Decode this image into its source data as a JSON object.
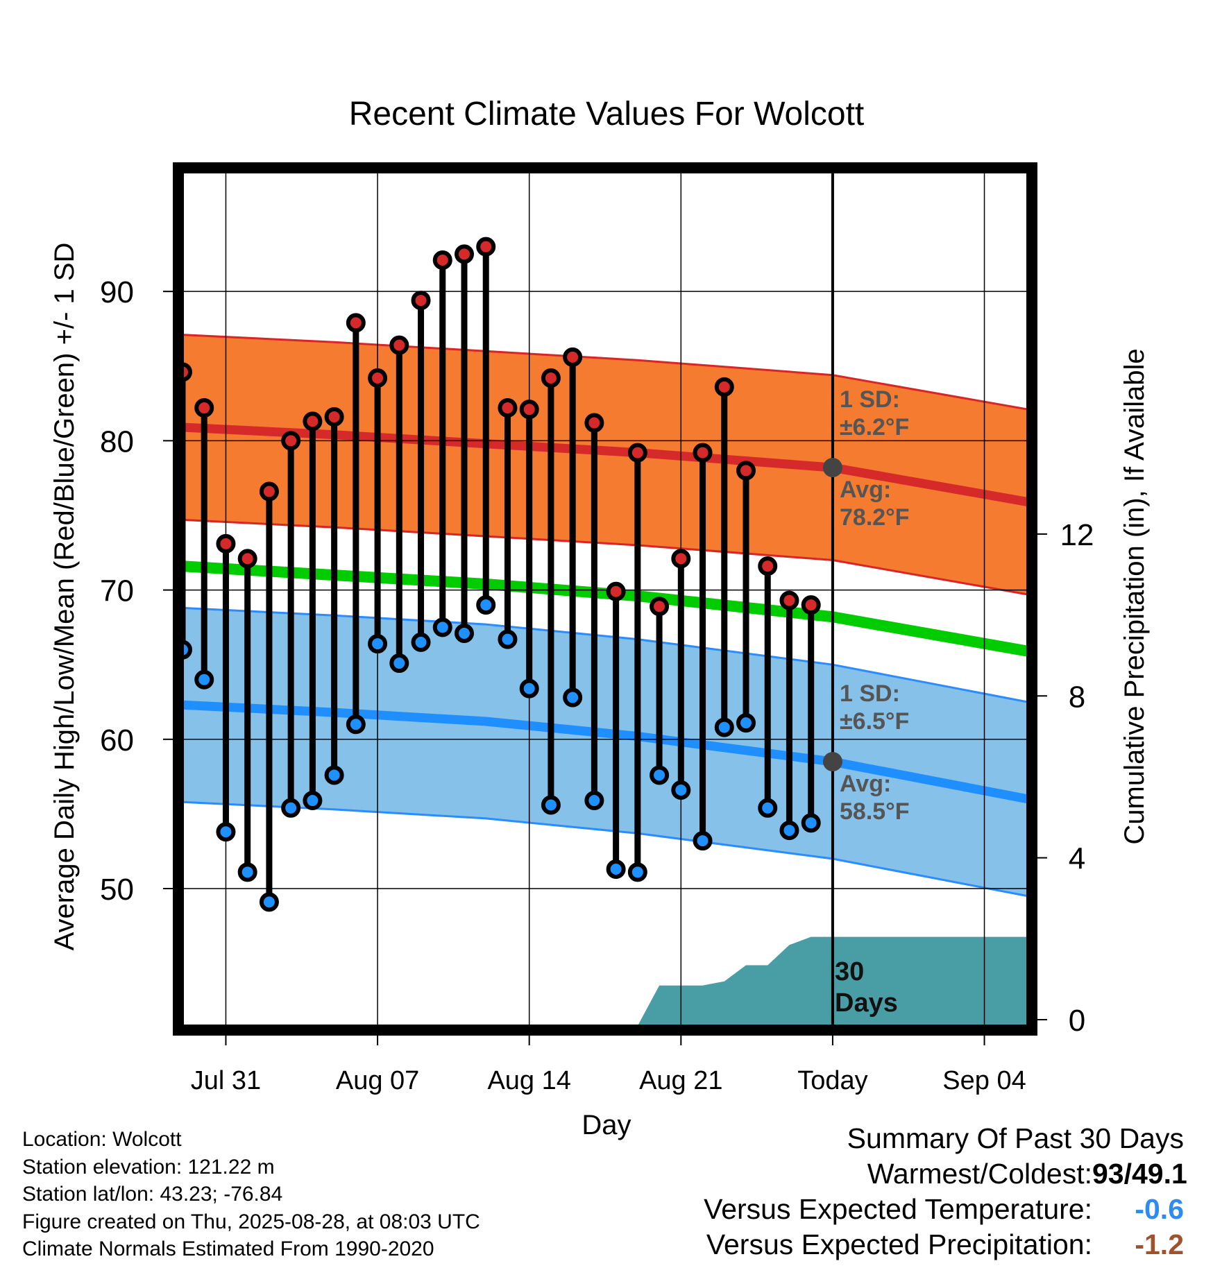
{
  "chart_data": {
    "type": "line",
    "title": "Recent Climate Values For Wolcott",
    "xlabel": "Day",
    "ylabel": "Average Daily High/Low/Mean (Red/Blue/Green) +/- 1 SD",
    "y2label": "Cumulative Precipitation (in), If Available",
    "x_start": "2025-07-29",
    "x_end": "2025-09-06",
    "today": "2025-08-28",
    "ylim": [
      40.8,
      98
    ],
    "y_ticks": [
      50,
      60,
      70,
      80,
      90
    ],
    "y2lim": [
      0,
      21.1
    ],
    "y2_ticks": [
      0,
      4,
      8,
      12
    ],
    "x_ticks": [
      {
        "date": "2025-07-31",
        "label": "Jul 31"
      },
      {
        "date": "2025-08-07",
        "label": "Aug 07"
      },
      {
        "date": "2025-08-14",
        "label": "Aug 14"
      },
      {
        "date": "2025-08-21",
        "label": "Aug 21"
      },
      {
        "date": "2025-08-28",
        "label": "Today"
      },
      {
        "date": "2025-09-04",
        "label": "Sep 04"
      }
    ],
    "grid": true,
    "highs": [
      {
        "date": "2025-07-29",
        "value": 84.6
      },
      {
        "date": "2025-07-30",
        "value": 82.2
      },
      {
        "date": "2025-07-31",
        "value": 73.1
      },
      {
        "date": "2025-08-01",
        "value": 72.1
      },
      {
        "date": "2025-08-02",
        "value": 76.6
      },
      {
        "date": "2025-08-03",
        "value": 80.0
      },
      {
        "date": "2025-08-04",
        "value": 81.3
      },
      {
        "date": "2025-08-05",
        "value": 81.6
      },
      {
        "date": "2025-08-06",
        "value": 87.9
      },
      {
        "date": "2025-08-07",
        "value": 84.2
      },
      {
        "date": "2025-08-08",
        "value": 86.4
      },
      {
        "date": "2025-08-09",
        "value": 89.4
      },
      {
        "date": "2025-08-10",
        "value": 92.1
      },
      {
        "date": "2025-08-11",
        "value": 92.5
      },
      {
        "date": "2025-08-12",
        "value": 93.0
      },
      {
        "date": "2025-08-13",
        "value": 82.2
      },
      {
        "date": "2025-08-14",
        "value": 82.1
      },
      {
        "date": "2025-08-15",
        "value": 84.2
      },
      {
        "date": "2025-08-16",
        "value": 85.6
      },
      {
        "date": "2025-08-17",
        "value": 81.2
      },
      {
        "date": "2025-08-18",
        "value": 69.9
      },
      {
        "date": "2025-08-19",
        "value": 79.2
      },
      {
        "date": "2025-08-20",
        "value": 68.9
      },
      {
        "date": "2025-08-21",
        "value": 72.1
      },
      {
        "date": "2025-08-22",
        "value": 79.2
      },
      {
        "date": "2025-08-23",
        "value": 83.6
      },
      {
        "date": "2025-08-24",
        "value": 78.0
      },
      {
        "date": "2025-08-25",
        "value": 71.6
      },
      {
        "date": "2025-08-26",
        "value": 69.3
      },
      {
        "date": "2025-08-27",
        "value": 69.0
      }
    ],
    "lows": [
      {
        "date": "2025-07-29",
        "value": 66.0
      },
      {
        "date": "2025-07-30",
        "value": 64.0
      },
      {
        "date": "2025-07-31",
        "value": 53.8
      },
      {
        "date": "2025-08-01",
        "value": 51.1
      },
      {
        "date": "2025-08-02",
        "value": 49.1
      },
      {
        "date": "2025-08-03",
        "value": 55.4
      },
      {
        "date": "2025-08-04",
        "value": 55.9
      },
      {
        "date": "2025-08-05",
        "value": 57.6
      },
      {
        "date": "2025-08-06",
        "value": 61.0
      },
      {
        "date": "2025-08-07",
        "value": 66.4
      },
      {
        "date": "2025-08-08",
        "value": 65.1
      },
      {
        "date": "2025-08-09",
        "value": 66.5
      },
      {
        "date": "2025-08-10",
        "value": 67.5
      },
      {
        "date": "2025-08-11",
        "value": 67.1
      },
      {
        "date": "2025-08-12",
        "value": 69.0
      },
      {
        "date": "2025-08-13",
        "value": 66.7
      },
      {
        "date": "2025-08-14",
        "value": 63.4
      },
      {
        "date": "2025-08-15",
        "value": 55.6
      },
      {
        "date": "2025-08-16",
        "value": 62.8
      },
      {
        "date": "2025-08-17",
        "value": 55.9
      },
      {
        "date": "2025-08-18",
        "value": 51.3
      },
      {
        "date": "2025-08-19",
        "value": 51.1
      },
      {
        "date": "2025-08-20",
        "value": 57.6
      },
      {
        "date": "2025-08-21",
        "value": 56.6
      },
      {
        "date": "2025-08-22",
        "value": 53.2
      },
      {
        "date": "2025-08-23",
        "value": 60.8
      },
      {
        "date": "2025-08-24",
        "value": 61.1
      },
      {
        "date": "2025-08-25",
        "value": 55.4
      },
      {
        "date": "2025-08-26",
        "value": 53.9
      },
      {
        "date": "2025-08-27",
        "value": 54.4
      }
    ],
    "normal_high": [
      {
        "date": "2025-07-29",
        "value": 80.9
      },
      {
        "date": "2025-08-05",
        "value": 80.4
      },
      {
        "date": "2025-08-12",
        "value": 79.8
      },
      {
        "date": "2025-08-19",
        "value": 79.2
      },
      {
        "date": "2025-08-28",
        "value": 78.2
      },
      {
        "date": "2025-09-06",
        "value": 75.9
      }
    ],
    "normal_low": [
      {
        "date": "2025-07-29",
        "value": 62.3
      },
      {
        "date": "2025-08-05",
        "value": 61.8
      },
      {
        "date": "2025-08-12",
        "value": 61.2
      },
      {
        "date": "2025-08-19",
        "value": 60.2
      },
      {
        "date": "2025-08-28",
        "value": 58.5
      },
      {
        "date": "2025-09-06",
        "value": 56.0
      }
    ],
    "normal_mean": [
      {
        "date": "2025-07-29",
        "value": 71.6
      },
      {
        "date": "2025-08-05",
        "value": 71.0
      },
      {
        "date": "2025-08-12",
        "value": 70.4
      },
      {
        "date": "2025-08-19",
        "value": 69.6
      },
      {
        "date": "2025-08-28",
        "value": 68.2
      },
      {
        "date": "2025-09-06",
        "value": 65.9
      }
    ],
    "high_sd": 6.2,
    "low_sd": 6.5,
    "today_high_avg": 78.2,
    "today_low_avg": 58.5,
    "precip": [
      {
        "date": "2025-08-19",
        "value": 0.0
      },
      {
        "date": "2025-08-20",
        "value": 1.0
      },
      {
        "date": "2025-08-22",
        "value": 1.0
      },
      {
        "date": "2025-08-23",
        "value": 1.1
      },
      {
        "date": "2025-08-24",
        "value": 1.5
      },
      {
        "date": "2025-08-25",
        "value": 1.5
      },
      {
        "date": "2025-08-26",
        "value": 2.0
      },
      {
        "date": "2025-08-27",
        "value": 2.2
      },
      {
        "date": "2025-09-06",
        "value": 2.2
      }
    ],
    "annotations": {
      "high_sd_line1": "1 SD:",
      "high_sd_line2": "±6.2°F",
      "high_avg_line1": "Avg:",
      "high_avg_line2": "78.2°F",
      "low_sd_line1": "1 SD:",
      "low_sd_line2": "±6.5°F",
      "low_avg_line1": "Avg:",
      "low_avg_line2": "58.5°F",
      "window_line1": "30",
      "window_line2": "Days"
    }
  },
  "colors": {
    "high_band": "#f47b30",
    "high_band_edge": "#d82626",
    "high_line": "#d62a2a",
    "low_band": "#85c1e9",
    "low_band_edge": "#2a8cff",
    "low_line": "#1f8fff",
    "mean_line": "#00cc00",
    "precip": "#499ea6",
    "high_dot": "#d62a2a",
    "low_dot": "#1e90ff",
    "annotation": "#555555",
    "today_marker": "#444444"
  },
  "footer": {
    "location": "Location: Wolcott",
    "elevation": "Station elevation: 121.22 m",
    "latlon": "Station lat/lon: 43.23; -76.84",
    "created": "Figure created on Thu, 2025-08-28, at 08:03 UTC",
    "normals": "Climate Normals Estimated From 1990-2020"
  },
  "summary": {
    "title": "Summary Of Past 30 Days",
    "warmest_label": "Warmest/Coldest:",
    "warmest_value": "93/49.1",
    "temp_label": "Versus Expected Temperature:",
    "temp_value": "-0.6",
    "temp_color": "#2e8cf0",
    "precip_label": "Versus Expected Precipitation:",
    "precip_value": "-1.2",
    "precip_color": "#a0522d"
  }
}
